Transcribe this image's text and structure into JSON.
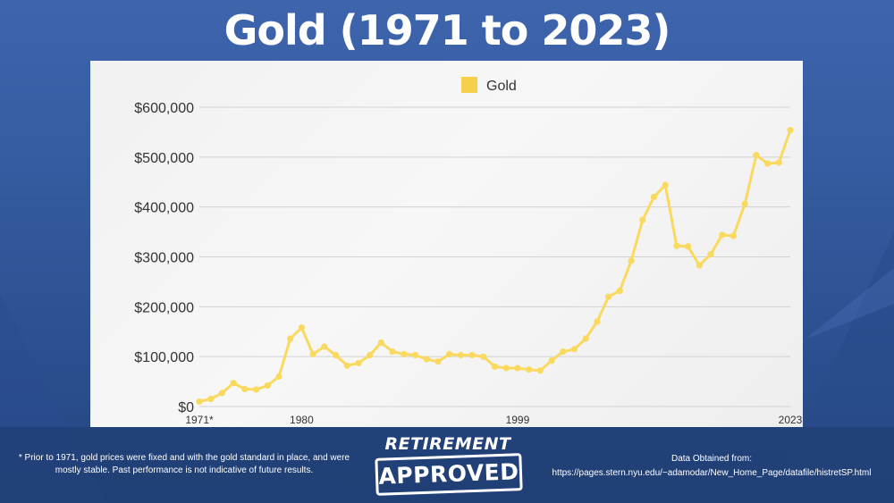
{
  "title": "Gold (1971 to 2023)",
  "colors": {
    "background": "#2f5597",
    "line": "#f9d95e",
    "legend_swatch": "#f6d04d",
    "grid": "#d2d2d2",
    "text": "#333333"
  },
  "chart_data": {
    "type": "line",
    "title": "",
    "xlabel": "",
    "ylabel": "",
    "legend": {
      "position": "top-center",
      "entries": [
        "Gold"
      ]
    },
    "grid": true,
    "ylim": [
      0,
      600000
    ],
    "y_ticks": [
      0,
      100000,
      200000,
      300000,
      400000,
      500000,
      600000
    ],
    "y_tick_labels": [
      "$0",
      "$100,000",
      "$200,000",
      "$300,000",
      "$400,000",
      "$500,000",
      "$600,000"
    ],
    "x_tick_labels": [
      {
        "index": 0,
        "label": "1971*"
      },
      {
        "index": 9,
        "label": "1980"
      },
      {
        "index": 28,
        "label": "1999"
      },
      {
        "index": 52,
        "label": "2023"
      }
    ],
    "x": [
      1971,
      1972,
      1973,
      1974,
      1975,
      1976,
      1977,
      1978,
      1979,
      1980,
      1981,
      1982,
      1983,
      1984,
      1985,
      1986,
      1987,
      1988,
      1989,
      1990,
      1991,
      1992,
      1993,
      1994,
      1995,
      1996,
      1997,
      1998,
      1999,
      2000,
      2001,
      2002,
      2003,
      2004,
      2005,
      2006,
      2007,
      2008,
      2009,
      2010,
      2011,
      2012,
      2013,
      2014,
      2015,
      2016,
      2017,
      2018,
      2019,
      2020,
      2021,
      2022,
      2023
    ],
    "series": [
      {
        "name": "Gold",
        "values": [
          10000,
          15000,
          27000,
          47000,
          35000,
          34000,
          42000,
          60000,
          136000,
          158000,
          105000,
          120000,
          103000,
          82000,
          87000,
          103000,
          128000,
          110000,
          105000,
          103000,
          95000,
          90000,
          105000,
          103000,
          103000,
          100000,
          80000,
          77000,
          77000,
          74000,
          72000,
          92000,
          110000,
          115000,
          136000,
          170000,
          220000,
          232000,
          292000,
          374000,
          420000,
          444000,
          322000,
          321000,
          283000,
          305000,
          344000,
          342000,
          406000,
          504000,
          487000,
          489000,
          554000
        ]
      }
    ]
  },
  "footer": {
    "footnote": "* Prior to 1971, gold prices were fixed and with the gold standard in place, and were mostly stable. Past performance is not indicative of future results.",
    "source_label": "Data Obtained from:",
    "source_url": "https://pages.stern.nyu.edu/~adamodar/New_Home_Page/datafile/histretSP.html"
  },
  "logo": {
    "line1": "RETIREMENT",
    "line2": "APPROVED"
  }
}
